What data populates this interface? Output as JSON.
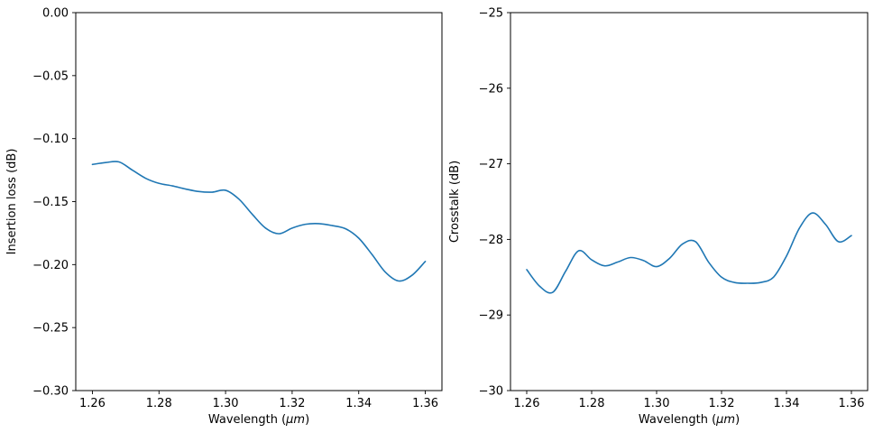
{
  "figure": {
    "background": "#ffffff",
    "line_color": "#1f77b4",
    "axis_color": "#000000"
  },
  "chart_data": [
    {
      "type": "line",
      "title": "",
      "xlabel": "Wavelength (μm)",
      "ylabel": "Insertion loss (dB)",
      "xlim": [
        1.255,
        1.365
      ],
      "ylim": [
        -0.3,
        0.0
      ],
      "grid": false,
      "legend": "none",
      "xticks": [
        1.26,
        1.28,
        1.3,
        1.32,
        1.34,
        1.36
      ],
      "xtick_labels": [
        "1.26",
        "1.28",
        "1.30",
        "1.32",
        "1.34",
        "1.36"
      ],
      "yticks": [
        0.0,
        -0.05,
        -0.1,
        -0.15,
        -0.2,
        -0.25,
        -0.3
      ],
      "ytick_labels": [
        "0.00",
        "−0.05",
        "−0.10",
        "−0.15",
        "−0.20",
        "−0.25",
        "−0.30"
      ],
      "x": [
        1.26,
        1.264,
        1.268,
        1.272,
        1.276,
        1.28,
        1.284,
        1.288,
        1.292,
        1.296,
        1.3,
        1.304,
        1.308,
        1.312,
        1.316,
        1.32,
        1.324,
        1.328,
        1.332,
        1.336,
        1.34,
        1.344,
        1.348,
        1.352,
        1.356,
        1.36
      ],
      "series": [
        {
          "name": "insertion-loss",
          "values": [
            -0.1205,
            -0.119,
            -0.1185,
            -0.125,
            -0.1315,
            -0.1355,
            -0.1375,
            -0.14,
            -0.142,
            -0.1425,
            -0.141,
            -0.148,
            -0.16,
            -0.171,
            -0.1755,
            -0.171,
            -0.168,
            -0.1675,
            -0.169,
            -0.1715,
            -0.179,
            -0.192,
            -0.206,
            -0.213,
            -0.2085,
            -0.1975
          ]
        }
      ]
    },
    {
      "type": "line",
      "title": "",
      "xlabel": "Wavelength (μm)",
      "ylabel": "Crosstalk (dB)",
      "xlim": [
        1.255,
        1.365
      ],
      "ylim": [
        -30,
        -25
      ],
      "grid": false,
      "legend": "none",
      "xticks": [
        1.26,
        1.28,
        1.3,
        1.32,
        1.34,
        1.36
      ],
      "xtick_labels": [
        "1.26",
        "1.28",
        "1.30",
        "1.32",
        "1.34",
        "1.36"
      ],
      "yticks": [
        -25,
        -26,
        -27,
        -28,
        -29,
        -30
      ],
      "ytick_labels": [
        "−25",
        "−26",
        "−27",
        "−28",
        "−29",
        "−30"
      ],
      "x": [
        1.26,
        1.264,
        1.268,
        1.272,
        1.276,
        1.28,
        1.284,
        1.288,
        1.292,
        1.296,
        1.3,
        1.304,
        1.308,
        1.312,
        1.316,
        1.32,
        1.324,
        1.328,
        1.332,
        1.336,
        1.34,
        1.344,
        1.348,
        1.352,
        1.356,
        1.36
      ],
      "series": [
        {
          "name": "crosstalk",
          "values": [
            -28.4,
            -28.62,
            -28.7,
            -28.42,
            -28.15,
            -28.27,
            -28.35,
            -28.3,
            -28.24,
            -28.28,
            -28.36,
            -28.25,
            -28.06,
            -28.03,
            -28.3,
            -28.5,
            -28.57,
            -28.58,
            -28.57,
            -28.5,
            -28.22,
            -27.85,
            -27.65,
            -27.8,
            -28.03,
            -27.95
          ]
        }
      ]
    }
  ]
}
